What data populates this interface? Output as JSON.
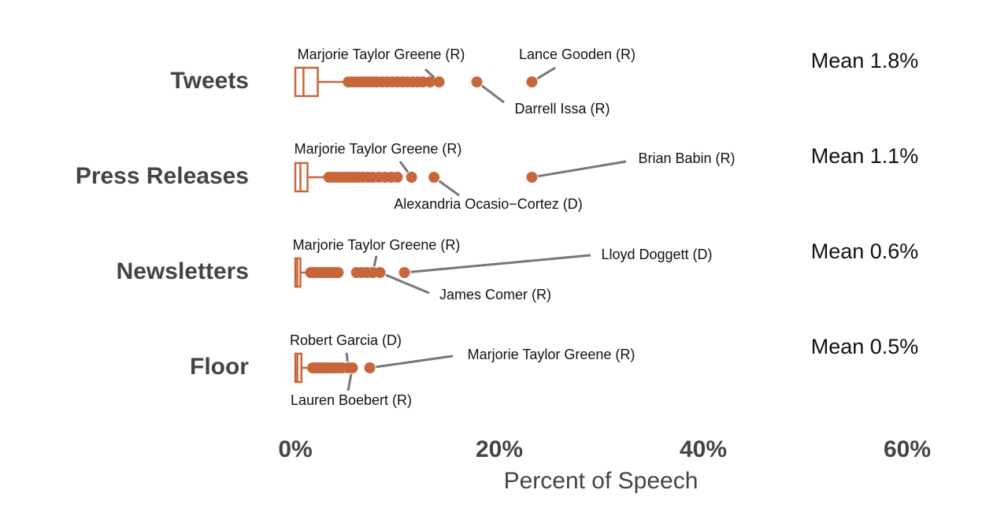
{
  "chart_data": {
    "type": "boxplot",
    "x_label": "Percent of Speech",
    "xlim": [
      0,
      60
    ],
    "xticks": [
      {
        "value": 0,
        "label": "0%"
      },
      {
        "value": 20,
        "label": "20%"
      },
      {
        "value": 40,
        "label": "40%"
      },
      {
        "value": 60,
        "label": "60%"
      }
    ],
    "color": "#c8663b",
    "series": [
      {
        "name": "Tweets",
        "q1": 0,
        "median": 0.8,
        "q3": 2.2,
        "whisker_high": 5.0,
        "outliers": [
          5.2,
          5.6,
          6,
          6.4,
          6.8,
          7.2,
          7.6,
          8,
          8.5,
          9,
          9.5,
          10,
          10.5,
          11,
          11.5,
          12,
          12.5,
          13.2
        ],
        "annotations": [
          {
            "label": "Marjorie Taylor Greene (R)",
            "value": 14.1
          },
          {
            "label": "Darrell Issa (R)",
            "value": 17.8
          },
          {
            "label": "Lance Gooden (R)",
            "value": 23.2
          }
        ],
        "mean": 1.8,
        "mean_label": "Mean 1.8%"
      },
      {
        "name": "Press Releases",
        "q1": 0,
        "median": 0.5,
        "q3": 1.2,
        "whisker_high": 3.1,
        "outliers": [
          3.3,
          3.7,
          4.1,
          4.5,
          4.9,
          5.3,
          5.7,
          6.1,
          6.6,
          7.1,
          7.6,
          8.2,
          8.8,
          9.4,
          10
        ],
        "annotations": [
          {
            "label": "Marjorie Taylor Greene (R)",
            "value": 11.4
          },
          {
            "label": "Alexandria Ocasio−Cortez (D)",
            "value": 13.6
          },
          {
            "label": "Brian Babin (R)",
            "value": 23.2
          }
        ],
        "mean": 1.1,
        "mean_label": "Mean 1.1%"
      },
      {
        "name": "Newsletters",
        "q1": 0,
        "median": 0.2,
        "q3": 0.5,
        "whisker_high": 1.3,
        "outliers": [
          1.5,
          1.8,
          2.1,
          2.4,
          2.7,
          3.0,
          3.3,
          3.6,
          3.9,
          4.2,
          6.0,
          6.5,
          7.0
        ],
        "annotations": [
          {
            "label": "Marjorie Taylor Greene (R)",
            "value": 7.6
          },
          {
            "label": "James Comer (R)",
            "value": 8.3
          },
          {
            "label": "Lloyd Doggett (D)",
            "value": 10.7
          }
        ],
        "mean": 0.6,
        "mean_label": "Mean 0.6%"
      },
      {
        "name": "Floor",
        "q1": 0,
        "median": 0.2,
        "q3": 0.6,
        "whisker_high": 1.5,
        "outliers": [
          1.7,
          2.0,
          2.3,
          2.6,
          2.9,
          3.2,
          3.5,
          3.8,
          4.2,
          4.6
        ],
        "annotations": [
          {
            "label": "Robert Garcia (D)",
            "value": 5.2
          },
          {
            "label": "Lauren Boebert (R)",
            "value": 5.6
          },
          {
            "label": "Marjorie Taylor Greene (R)",
            "value": 7.3
          }
        ],
        "mean": 0.5,
        "mean_label": "Mean 0.5%"
      }
    ]
  }
}
